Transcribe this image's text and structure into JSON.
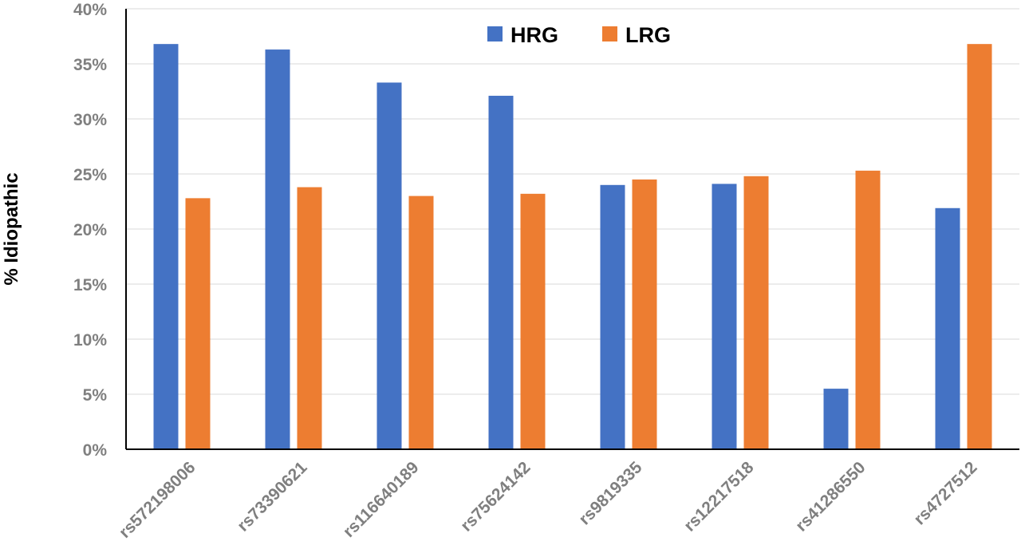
{
  "chart_data": {
    "type": "bar",
    "ylabel": "% Idiopathic",
    "xlabel": "",
    "categories": [
      "rs572198006",
      "rs73390621",
      "rs116640189",
      "rs75624142",
      "rs9819335",
      "rs12217518",
      "rs41286550",
      "rs4727512"
    ],
    "series": [
      {
        "name": "HRG",
        "color": "#4472c4",
        "values": [
          36.8,
          36.3,
          33.3,
          32.1,
          24.0,
          24.1,
          5.5,
          21.9
        ]
      },
      {
        "name": "LRG",
        "color": "#ed7d31",
        "values": [
          22.8,
          23.8,
          23.0,
          23.2,
          24.5,
          24.8,
          25.3,
          36.8
        ]
      }
    ],
    "ylim": [
      0,
      40
    ],
    "yticks": [
      "0%",
      "5%",
      "10%",
      "15%",
      "20%",
      "25%",
      "30%",
      "35%",
      "40%"
    ],
    "grid": true,
    "legend_position": "top-center"
  }
}
